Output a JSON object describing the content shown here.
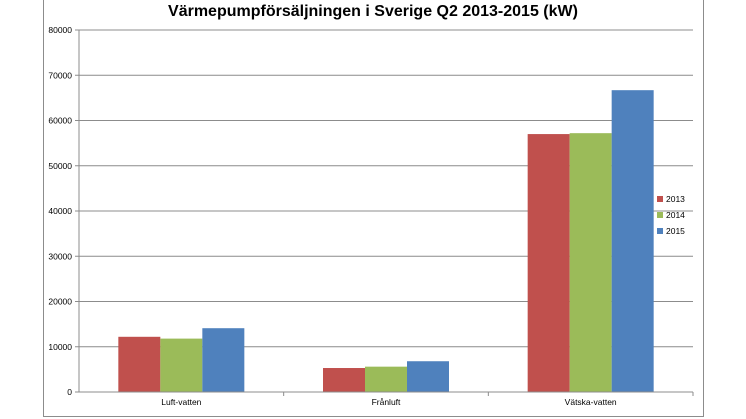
{
  "chart_data": {
    "type": "bar",
    "title": "Värmepumpförsäljningen i Sverige Q2 2013-2015 (kW)",
    "categories": [
      "Luft-vatten",
      "Frånluft",
      "Vätska-vatten"
    ],
    "series": [
      {
        "name": "2013",
        "color": "#c0504d",
        "values": [
          12200,
          5300,
          57000
        ]
      },
      {
        "name": "2014",
        "color": "#9bbb59",
        "values": [
          11800,
          5600,
          57200
        ]
      },
      {
        "name": "2015",
        "color": "#4f81bd",
        "values": [
          14100,
          6800,
          66700
        ]
      }
    ],
    "ylim": [
      0,
      80000
    ],
    "yticks": [
      "0",
      "10000",
      "20000",
      "30000",
      "40000",
      "50000",
      "60000",
      "70000",
      "80000"
    ],
    "grid": true,
    "legend_position": "right"
  }
}
